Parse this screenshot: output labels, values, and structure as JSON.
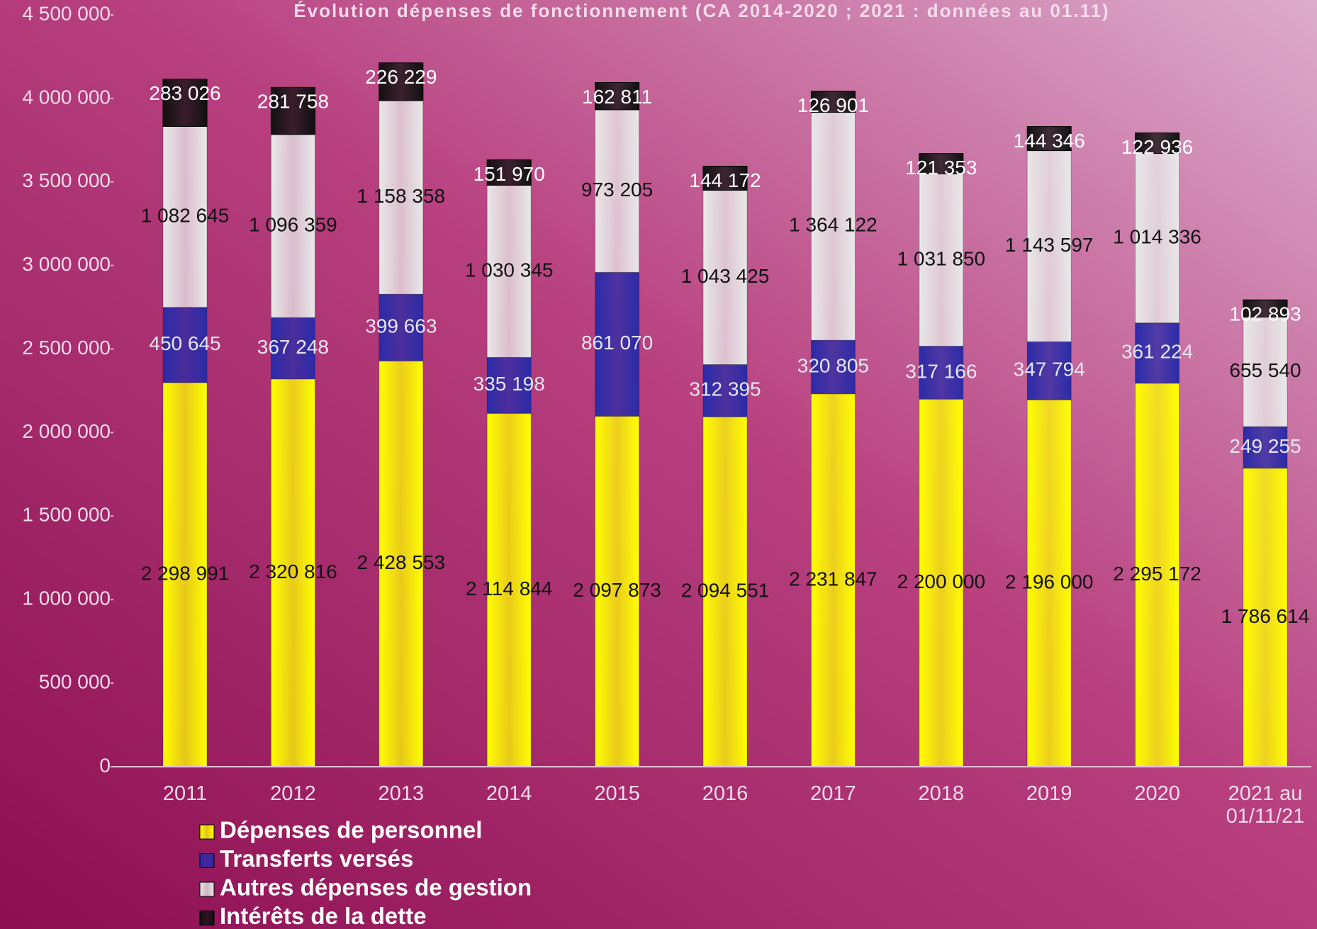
{
  "chart_data": {
    "type": "bar",
    "stacked": true,
    "title": "Évolution dépenses de fonctionnement (CA 2014-2020 ; 2021 : données au 01.11)",
    "categories": [
      "2011",
      "2012",
      "2013",
      "2014",
      "2015",
      "2016",
      "2017",
      "2018",
      "2019",
      "2020",
      "2021 au 01/11/21"
    ],
    "series": [
      {
        "name": "Dépenses de personnel",
        "color": "#ffff00",
        "values": [
          2298991,
          2320816,
          2428553,
          2114844,
          2097873,
          2094551,
          2231847,
          2200000,
          2196000,
          2295172,
          1786614
        ],
        "value_labels": [
          "2 298 991",
          "2 320 816",
          "2 428 553",
          "2 114 844",
          "2 097 873",
          "2 094 551",
          "2 231 847",
          "2 200 000",
          "2 196 000",
          "2 295 172",
          "1 786 614"
        ]
      },
      {
        "name": "Transferts versés",
        "color": "#2b2ba8",
        "values": [
          450645,
          367248,
          399663,
          335198,
          861070,
          312395,
          320805,
          317166,
          347794,
          361224,
          249255
        ],
        "value_labels": [
          "450 645",
          "367 248",
          "399 663",
          "335 198",
          "861 070",
          "312 395",
          "320 805",
          "317 166",
          "347 794",
          "361 224",
          "249 255"
        ]
      },
      {
        "name": "Autres dépenses de gestion",
        "color": "#e8e8e8",
        "values": [
          1082645,
          1096359,
          1158358,
          1030345,
          973205,
          1043425,
          1364122,
          1031850,
          1143597,
          1014336,
          655540
        ],
        "value_labels": [
          "1 082 645",
          "1 096 359",
          "1 158 358",
          "1 030 345",
          "973 205",
          "1 043 425",
          "1 364 122",
          "1 031 850",
          "1 143 597",
          "1 014 336",
          "655 540"
        ]
      },
      {
        "name": "Intérêts de la dette",
        "color": "#111111",
        "values": [
          283026,
          281758,
          226229,
          151970,
          162811,
          144172,
          126901,
          121353,
          144346,
          122936,
          102893
        ],
        "value_labels": [
          "283 026",
          "281 758",
          "226 229",
          "151 970",
          "162 811",
          "144 172",
          "126 901",
          "121 353",
          "144 346",
          "122 936",
          "102 893"
        ]
      }
    ],
    "ylim": [
      0,
      4500000
    ],
    "yticks": [
      {
        "value": 0,
        "label": "0"
      },
      {
        "value": 500000,
        "label": "500 000"
      },
      {
        "value": 1000000,
        "label": "1 000 000"
      },
      {
        "value": 1500000,
        "label": "1 500 000"
      },
      {
        "value": 2000000,
        "label": "2 000 000"
      },
      {
        "value": 2500000,
        "label": "2 500 000"
      },
      {
        "value": 3000000,
        "label": "3 000 000"
      },
      {
        "value": 3500000,
        "label": "3 500 000"
      },
      {
        "value": 4000000,
        "label": "4 000 000"
      },
      {
        "value": 4500000,
        "label": "4 500 000"
      }
    ],
    "grid": false
  }
}
